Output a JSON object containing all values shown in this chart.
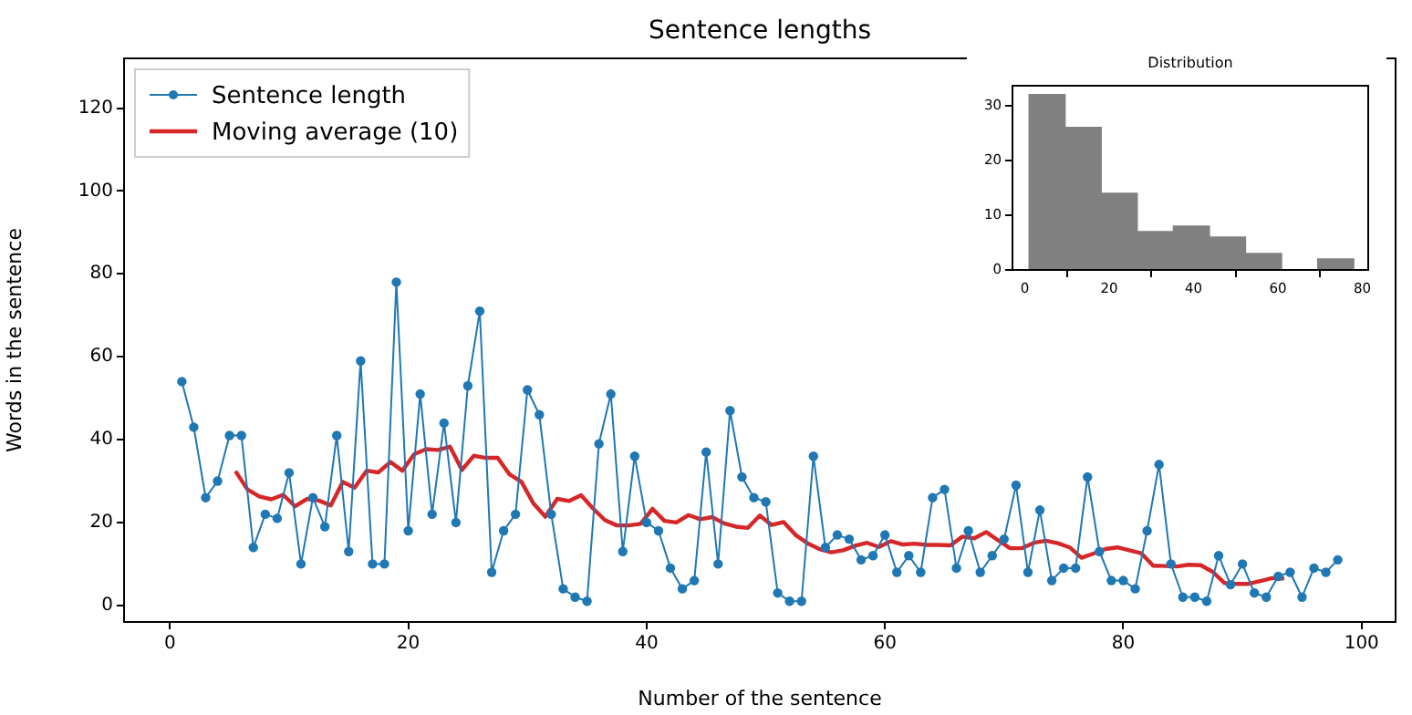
{
  "chart_data": [
    {
      "type": "line",
      "title": "Sentence lengths",
      "xlabel": "Number of the sentence",
      "ylabel": "Words in the sentence",
      "xlim": [
        -3.85,
        102.85
      ],
      "ylim": [
        -4,
        132
      ],
      "xticks": [
        0,
        20,
        40,
        60,
        80,
        100
      ],
      "yticks": [
        0,
        20,
        40,
        60,
        80,
        100,
        120
      ],
      "grid": false,
      "legend": "top left",
      "series": [
        {
          "name": "Sentence length",
          "color": "#1f77b4",
          "marker": "circle",
          "x": [
            1,
            2,
            3,
            4,
            5,
            6,
            7,
            8,
            9,
            10,
            11,
            12,
            13,
            14,
            15,
            16,
            17,
            18,
            19,
            20,
            21,
            22,
            23,
            24,
            25,
            26,
            27,
            28,
            29,
            30,
            31,
            32,
            33,
            34,
            35,
            36,
            37,
            38,
            39,
            40,
            41,
            42,
            43,
            44,
            45,
            46,
            47,
            48,
            49,
            50,
            51,
            52,
            53,
            54,
            55,
            56,
            57,
            58,
            59,
            60,
            61,
            62,
            63,
            64,
            65,
            66,
            67,
            68,
            69,
            70,
            71,
            72,
            73,
            74,
            75,
            76,
            77,
            78,
            79,
            80,
            81,
            82,
            83,
            84,
            85,
            86,
            87,
            88,
            89,
            90,
            91,
            92,
            93,
            94,
            95,
            96,
            97,
            98
          ],
          "values": [
            54,
            43,
            26,
            30,
            41,
            41,
            14,
            22,
            21,
            32,
            10,
            26,
            19,
            41,
            13,
            59,
            10,
            10,
            78,
            18,
            51,
            22,
            44,
            20,
            53,
            71,
            8,
            18,
            22,
            52,
            46,
            22,
            4,
            2,
            1,
            39,
            51,
            13,
            36,
            20,
            18,
            9,
            4,
            6,
            37,
            10,
            47,
            31,
            26,
            25,
            3,
            1,
            1,
            36,
            14,
            17,
            16,
            11,
            12,
            17,
            8,
            12,
            8,
            26,
            28,
            9,
            18,
            8,
            12,
            16,
            29,
            8,
            23,
            6,
            9,
            9,
            31,
            13,
            6,
            6,
            4,
            18,
            34,
            10,
            2,
            2,
            1,
            12,
            5,
            10,
            3,
            2,
            7,
            8,
            2,
            9,
            8,
            11
          ]
        },
        {
          "name": "Moving average (10)",
          "color": "#d62728",
          "marker": "none",
          "x": [
            5.5,
            6.5,
            7.5,
            8.5,
            9.5,
            10.5,
            11.5,
            12.5,
            13.5,
            14.5,
            15.5,
            16.5,
            17.5,
            18.5,
            19.5,
            20.5,
            21.5,
            22.5,
            23.5,
            24.5,
            25.5,
            26.5,
            27.5,
            28.5,
            29.5,
            30.5,
            31.5,
            32.5,
            33.5,
            34.5,
            35.5,
            36.5,
            37.5,
            38.5,
            39.5,
            40.5,
            41.5,
            42.5,
            43.5,
            44.5,
            45.5,
            46.5,
            47.5,
            48.5,
            49.5,
            50.5,
            51.5,
            52.5,
            53.5,
            54.5,
            55.5,
            56.5,
            57.5,
            58.5,
            59.5,
            60.5,
            61.5,
            62.5,
            63.5,
            64.5,
            65.5,
            66.5,
            67.5,
            68.5,
            69.5,
            70.5,
            71.5,
            72.5,
            73.5,
            74.5,
            75.5,
            76.5,
            77.5,
            78.5,
            79.5,
            80.5,
            81.5,
            82.5,
            83.5,
            84.5,
            85.5,
            86.5,
            87.5,
            88.5,
            89.5,
            90.5,
            91.5,
            92.5,
            93.5
          ],
          "values": [
            32.4,
            28,
            26.3,
            25.6,
            26.7,
            23.9,
            25.7,
            25.3,
            24.1,
            29.8,
            28.4,
            32.5,
            32.1,
            34.6,
            32.5,
            36.5,
            37.7,
            37.5,
            38.3,
            32.7,
            36.1,
            35.6,
            35.6,
            31.6,
            29.8,
            24.6,
            21.4,
            25.7,
            25.2,
            26.6,
            23.4,
            20.6,
            19.3,
            19.3,
            19.7,
            23.3,
            20.4,
            20,
            21.8,
            20.8,
            21.3,
            19.8,
            19,
            18.7,
            21.7,
            19.4,
            20.1,
            17,
            15,
            13.6,
            12.8,
            13.3,
            14.4,
            15.1,
            14.1,
            15.5,
            14.7,
            14.9,
            14.6,
            14.6,
            14.5,
            16.6,
            16.2,
            17.7,
            15.7,
            13.8,
            13.8,
            15.1,
            15.6,
            15,
            14,
            11.5,
            12.5,
            13.6,
            14,
            13.3,
            12.6,
            9.6,
            9.5,
            9.4,
            9.8,
            9.7,
            8.1,
            5.4,
            5.2,
            5.2,
            5.9,
            6.6,
            6.5
          ]
        }
      ]
    },
    {
      "type": "histogram",
      "title": "Distribution",
      "bins": [
        1,
        9.6,
        18.1,
        26.7,
        35.2,
        43.8,
        52.3,
        60.9,
        69.4,
        78
      ],
      "values": [
        32,
        26,
        14,
        7,
        8,
        6,
        3,
        0,
        2
      ],
      "color": "#808080",
      "xlim": [
        -2.9,
        81.4
      ],
      "ylim": [
        0,
        33.6
      ],
      "xticks": [
        0,
        20,
        40,
        60,
        80
      ],
      "yticks": [
        0,
        10,
        20,
        30
      ],
      "grid": false
    }
  ]
}
